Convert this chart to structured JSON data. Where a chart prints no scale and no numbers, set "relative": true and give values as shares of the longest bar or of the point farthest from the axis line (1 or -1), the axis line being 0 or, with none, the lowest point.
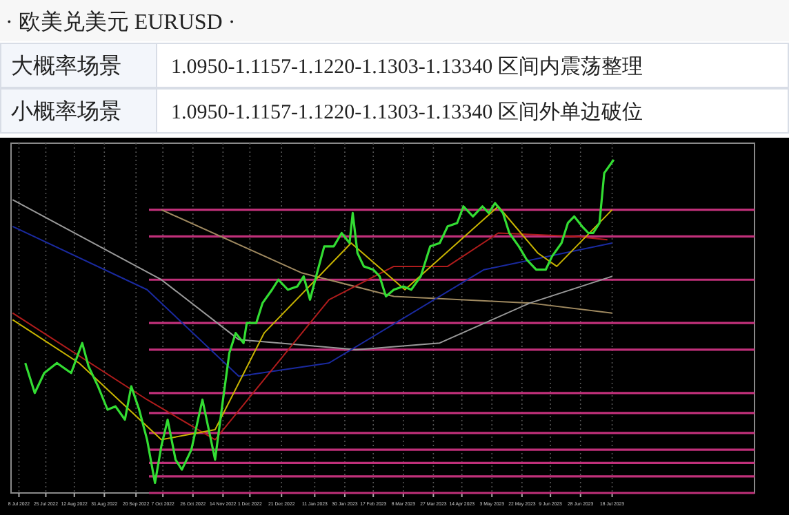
{
  "chart_data": {
    "type": "line",
    "title": "· 欧美兑美元  EURUSD ·",
    "relative": true,
    "grid": "x",
    "annotations": [
      "大概率场景",
      "1.0950-1.1157-1.1220-1.1303-1.13340 区间内震荡整理",
      "小概率场景",
      "1.0950-1.1157-1.1220-1.1303-1.13340 区间外单边破位"
    ],
    "xlim": [
      "2022-07-03",
      "2023-10-16"
    ],
    "xticks": [
      {
        "value": "2022-07-08",
        "label": "8 Jul 2022"
      },
      {
        "value": "2022-07-25",
        "label": "25 Jul 2022"
      },
      {
        "value": "2022-08-12",
        "label": "12 Aug 2022"
      },
      {
        "value": "2022-08-31",
        "label": "31 Aug 2022"
      },
      {
        "value": "2022-09-20",
        "label": "20 Sep 2022"
      },
      {
        "value": "2022-10-07",
        "label": "7 Oct 2022"
      },
      {
        "value": "2022-10-26",
        "label": "26 Oct 2022"
      },
      {
        "value": "2022-11-14",
        "label": "14 Nov 2022"
      },
      {
        "value": "2022-12-01",
        "label": "1 Dec 2022"
      },
      {
        "value": "2022-12-21",
        "label": "21 Dec 2022"
      },
      {
        "value": "2023-01-11",
        "label": "11 Jan 2023"
      },
      {
        "value": "2023-01-30",
        "label": "30 Jan 2023"
      },
      {
        "value": "2023-02-17",
        "label": "17 Feb 2023"
      },
      {
        "value": "2023-03-08",
        "label": "8 Mar 2023"
      },
      {
        "value": "2023-03-27",
        "label": "27 Mar 2023"
      },
      {
        "value": "2023-04-14",
        "label": "14 Apr 2023"
      },
      {
        "value": "2023-05-03",
        "label": "3 May 2023"
      },
      {
        "value": "2023-05-22",
        "label": "22 May 2023"
      },
      {
        "value": "2023-06-09",
        "label": "9 Jun 2023"
      },
      {
        "value": "2023-06-28",
        "label": "28 Jun 2023"
      },
      {
        "value": "2023-07-18",
        "label": "18 Jul 2023"
      }
    ],
    "ref_lines": [
      {
        "axis": "y",
        "value": 0.85,
        "color": "#c0307a"
      },
      {
        "axis": "y",
        "value": 0.77,
        "color": "#c0307a"
      },
      {
        "axis": "y",
        "value": 0.64,
        "color": "#c0307a"
      },
      {
        "axis": "y",
        "value": 0.51,
        "color": "#c0307a"
      },
      {
        "axis": "y",
        "value": 0.43,
        "color": "#c0307a"
      },
      {
        "axis": "y",
        "value": 0.3,
        "color": "#c0307a"
      },
      {
        "axis": "y",
        "value": 0.24,
        "color": "#c0307a"
      },
      {
        "axis": "y",
        "value": 0.18,
        "color": "#c0307a"
      },
      {
        "axis": "y",
        "value": 0.13,
        "color": "#c0307a"
      },
      {
        "axis": "y",
        "value": 0.09,
        "color": "#c0307a"
      },
      {
        "axis": "y",
        "value": 0.05,
        "color": "#c0307a"
      },
      {
        "axis": "y",
        "value": 0,
        "color": "#c0307a"
      }
    ],
    "series": [
      {
        "type": "line",
        "color": "#a08a60",
        "x": [
          "2022-10-06",
          "2023-01-03",
          "2023-03-02",
          "2023-05-27",
          "2023-07-18"
        ],
        "values": [
          0.85,
          0.66,
          0.59,
          0.57,
          0.54
        ]
      },
      {
        "type": "line",
        "color": "#9a9a9a",
        "x": [
          "2022-07-04",
          "2022-10-06",
          "2022-11-24",
          "2023-02-06",
          "2023-03-31",
          "2023-05-27",
          "2023-07-18"
        ],
        "values": [
          0.88,
          0.64,
          0.46,
          0.43,
          0.45,
          0.57,
          0.65
        ]
      },
      {
        "type": "line",
        "color": "#1a2aa0",
        "x": [
          "2022-07-04",
          "2022-09-27",
          "2022-11-24",
          "2023-01-20",
          "2023-04-28",
          "2023-07-18"
        ],
        "values": [
          0.8,
          0.61,
          0.35,
          0.39,
          0.67,
          0.75
        ]
      },
      {
        "type": "line",
        "color": "#b01c1c",
        "x": [
          "2022-07-04",
          "2022-09-27",
          "2022-11-09",
          "2023-01-20",
          "2023-03-02",
          "2023-04-05",
          "2023-05-07",
          "2023-06-24",
          "2023-07-15"
        ],
        "values": [
          0.54,
          0.28,
          0.16,
          0.58,
          0.68,
          0.68,
          0.78,
          0.77,
          0.76
        ]
      },
      {
        "type": "line",
        "color": "#c8b400",
        "x": [
          "2022-07-04",
          "2022-08-15",
          "2022-10-06",
          "2022-11-09",
          "2022-12-10",
          "2023-02-03",
          "2023-03-09",
          "2023-05-07",
          "2023-06-01",
          "2023-06-13",
          "2023-07-18"
        ],
        "values": [
          0.52,
          0.39,
          0.16,
          0.19,
          0.48,
          0.75,
          0.61,
          0.86,
          0.72,
          0.68,
          0.85
        ]
      },
      {
        "type": "line",
        "color": "#33dd33",
        "x": [
          "2022-07-12",
          "2022-07-18",
          "2022-07-24",
          "2022-08-01",
          "2022-08-10",
          "2022-08-17",
          "2022-08-21",
          "2022-08-27",
          "2022-09-02",
          "2022-09-07",
          "2022-09-13",
          "2022-09-17",
          "2022-09-22",
          "2022-09-27",
          "2022-10-02",
          "2022-10-06",
          "2022-10-10",
          "2022-10-15",
          "2022-10-19",
          "2022-10-25",
          "2022-11-01",
          "2022-11-05",
          "2022-11-09",
          "2022-11-14",
          "2022-11-18",
          "2022-11-22",
          "2022-11-27",
          "2022-11-29",
          "2022-12-05",
          "2022-12-09",
          "2022-12-15",
          "2022-12-19",
          "2022-12-25",
          "2022-12-31",
          "2023-01-04",
          "2023-01-08",
          "2023-01-13",
          "2023-01-17",
          "2023-01-23",
          "2023-01-28",
          "2023-02-02",
          "2023-02-04",
          "2023-02-07",
          "2023-02-11",
          "2023-02-17",
          "2023-02-21",
          "2023-02-25",
          "2023-03-02",
          "2023-03-08",
          "2023-03-13",
          "2023-03-19",
          "2023-03-25",
          "2023-03-31",
          "2023-04-05",
          "2023-04-11",
          "2023-04-15",
          "2023-04-21",
          "2023-04-27",
          "2023-05-01",
          "2023-05-05",
          "2023-05-10",
          "2023-05-14",
          "2023-05-20",
          "2023-05-25",
          "2023-05-31",
          "2023-06-06",
          "2023-06-10",
          "2023-06-16",
          "2023-06-20",
          "2023-06-24",
          "2023-06-29",
          "2023-07-03",
          "2023-07-06",
          "2023-07-10",
          "2023-07-13",
          "2023-07-19"
        ],
        "values": [
          0.39,
          0.3,
          0.36,
          0.39,
          0.36,
          0.45,
          0.38,
          0.32,
          0.25,
          0.26,
          0.22,
          0.32,
          0.25,
          0.16,
          0.03,
          0.14,
          0.22,
          0.1,
          0.07,
          0.13,
          0.28,
          0.19,
          0.1,
          0.28,
          0.42,
          0.48,
          0.45,
          0.51,
          0.51,
          0.57,
          0.61,
          0.64,
          0.61,
          0.62,
          0.65,
          0.58,
          0.67,
          0.74,
          0.74,
          0.78,
          0.75,
          0.84,
          0.72,
          0.68,
          0.67,
          0.65,
          0.59,
          0.61,
          0.62,
          0.61,
          0.65,
          0.74,
          0.75,
          0.8,
          0.81,
          0.86,
          0.83,
          0.86,
          0.84,
          0.87,
          0.84,
          0.78,
          0.74,
          0.7,
          0.67,
          0.67,
          0.71,
          0.75,
          0.81,
          0.83,
          0.8,
          0.78,
          0.78,
          0.81,
          0.96,
          1
        ]
      }
    ]
  }
}
